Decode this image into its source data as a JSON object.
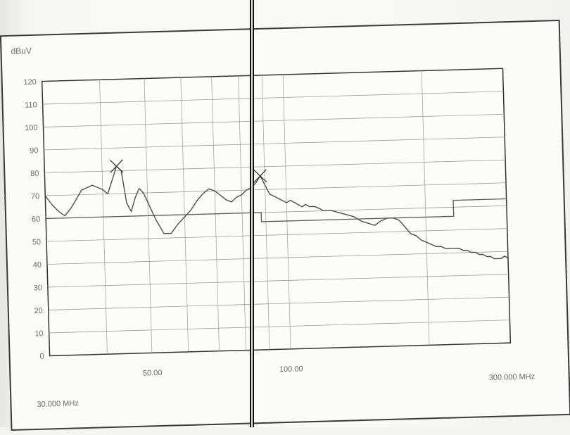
{
  "chart_data": {
    "type": "line",
    "unit_label": "dBuV",
    "y_tick_labels": [
      "0",
      "10",
      "20",
      "30",
      "40",
      "50",
      "60",
      "70",
      "80",
      "90",
      "100",
      "110",
      "120"
    ],
    "x_tick_labels": [
      {
        "value": 50,
        "label": "50.00"
      },
      {
        "value": 100,
        "label": "100.00"
      }
    ],
    "x_start_label": "30.000 MHz",
    "x_end_label": "300.000 MHz",
    "x_scale": "log",
    "xlim": [
      30,
      300
    ],
    "ylim": [
      0,
      120
    ],
    "grid": true,
    "series": [
      {
        "role": "emission",
        "color": "#4d4d4d",
        "x": [
          30,
          31,
          32,
          33,
          34,
          35,
          36,
          37,
          38,
          39,
          40,
          41,
          42,
          43,
          44,
          45,
          46,
          47,
          48,
          49,
          50,
          52,
          54,
          56,
          58,
          60,
          62,
          64,
          66,
          68,
          70,
          72,
          74,
          76,
          78,
          80,
          82,
          84,
          86,
          88,
          90,
          92,
          94,
          96,
          98,
          100,
          102,
          104,
          106,
          108,
          110,
          112,
          115,
          118,
          120,
          125,
          130,
          135,
          140,
          145,
          150,
          155,
          160,
          165,
          170,
          175,
          180,
          185,
          190,
          195,
          200,
          205,
          210,
          215,
          220,
          225,
          230,
          235,
          240,
          245,
          250,
          255,
          260,
          265,
          270,
          275,
          280,
          285,
          290,
          295,
          300
        ],
        "y": [
          70,
          66,
          63,
          61,
          64,
          68,
          72,
          73,
          74,
          73,
          72,
          70,
          76,
          82,
          80,
          66,
          62,
          68,
          72,
          70,
          66,
          58,
          52,
          52,
          56,
          59,
          62,
          66,
          69,
          71,
          70,
          68,
          66,
          65,
          67,
          68,
          70,
          71,
          73,
          76,
          72,
          68,
          67,
          66,
          65,
          64,
          65,
          64,
          63,
          62,
          63,
          62,
          62,
          61,
          60,
          60,
          59,
          58,
          57,
          55,
          54,
          53,
          55,
          56,
          56,
          55,
          52,
          49,
          48,
          46,
          45,
          44,
          43,
          43,
          42,
          42,
          42,
          42,
          41,
          41,
          40,
          40,
          39,
          39,
          38,
          38,
          37,
          37,
          37,
          38,
          37
        ]
      },
      {
        "role": "limit",
        "color": "#5a5a5a",
        "x": [
          30,
          88,
          88,
          230,
          230,
          300
        ],
        "y": [
          60,
          60,
          56,
          56,
          63,
          63
        ]
      }
    ],
    "markers": [
      {
        "x": 43,
        "y": 82
      },
      {
        "x": 88,
        "y": 76
      }
    ]
  }
}
